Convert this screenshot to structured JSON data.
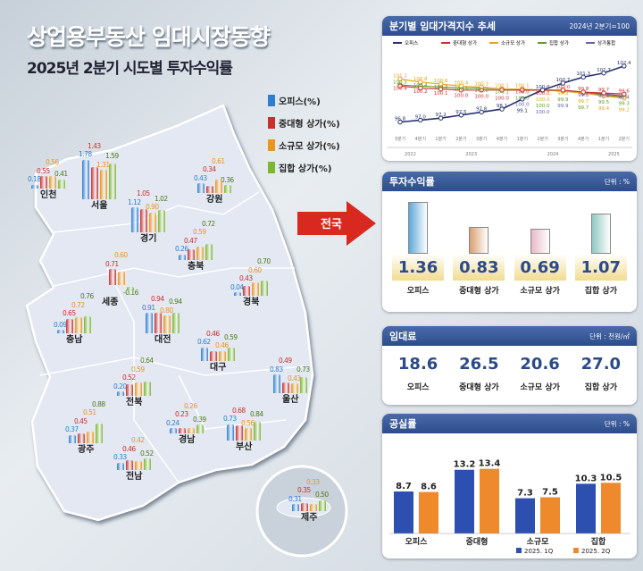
{
  "title": "상업용부동산 임대시장동향",
  "subtitle": "2025년 2분기 시도별 투자수익률",
  "legend": [
    {
      "label": "오피스(%)",
      "color": "#2f7fd0"
    },
    {
      "label": "중대형 상가(%)",
      "color": "#c9302c"
    },
    {
      "label": "소규모 상가(%)",
      "color": "#e8961e"
    },
    {
      "label": "집합 상가(%)",
      "color": "#7cb82f"
    }
  ],
  "nationwide_label": "전국",
  "regions": [
    {
      "name": "인천",
      "values": [
        0.18,
        0.55,
        0.56,
        0.41
      ]
    },
    {
      "name": "서울",
      "values": [
        1.78,
        1.43,
        1.31,
        1.59
      ]
    },
    {
      "name": "경기",
      "values": [
        1.12,
        1.05,
        0.9,
        1.02
      ]
    },
    {
      "name": "강원",
      "values": [
        0.43,
        0.34,
        0.61,
        0.36
      ]
    },
    {
      "name": "충북",
      "values": [
        0.26,
        0.47,
        0.59,
        0.72
      ]
    },
    {
      "name": "세종",
      "values": [
        null,
        0.71,
        0.6,
        -0.16
      ]
    },
    {
      "name": "경북",
      "values": [
        0.04,
        0.43,
        0.6,
        0.7
      ]
    },
    {
      "name": "충남",
      "values": [
        0.09,
        0.65,
        0.72,
        0.76
      ]
    },
    {
      "name": "대전",
      "values": [
        0.91,
        0.94,
        0.8,
        0.94
      ]
    },
    {
      "name": "대구",
      "values": [
        0.62,
        0.46,
        0.46,
        0.59
      ]
    },
    {
      "name": "울산",
      "values": [
        0.83,
        0.49,
        0.43,
        0.73
      ]
    },
    {
      "name": "전북",
      "values": [
        0.2,
        0.52,
        0.59,
        0.64
      ]
    },
    {
      "name": "광주",
      "values": [
        0.37,
        0.45,
        0.51,
        0.88
      ]
    },
    {
      "name": "경남",
      "values": [
        0.24,
        0.23,
        0.26,
        0.39
      ]
    },
    {
      "name": "부산",
      "values": [
        0.73,
        0.68,
        0.56,
        0.84
      ]
    },
    {
      "name": "전남",
      "values": [
        0.33,
        0.46,
        0.42,
        0.52
      ]
    },
    {
      "name": "제주",
      "values": [
        0.31,
        0.35,
        0.33,
        0.5
      ]
    }
  ],
  "index_panel": {
    "title": "분기별 임대가격지수 추세",
    "note": "2024년 2분기=100"
  },
  "returns_panel": {
    "title": "투자수익률",
    "unit": "단위 : %",
    "items": [
      {
        "label": "오피스",
        "value": "1.36"
      },
      {
        "label": "중대형 상가",
        "value": "0.83"
      },
      {
        "label": "소규모 상가",
        "value": "0.69"
      },
      {
        "label": "집합 상가",
        "value": "1.07"
      }
    ]
  },
  "rent_panel": {
    "title": "임대료",
    "unit": "단위 : 천원/㎡",
    "items": [
      {
        "label": "오피스",
        "value": "18.6"
      },
      {
        "label": "중대형 상가",
        "value": "26.5"
      },
      {
        "label": "소규모 상가",
        "value": "20.6"
      },
      {
        "label": "집합 상가",
        "value": "27.0"
      }
    ]
  },
  "vacancy_panel": {
    "title": "공실률",
    "unit": "단위 : %"
  },
  "chart_data": [
    {
      "type": "line",
      "title": "분기별 임대가격지수 추세",
      "categories": [
        "3분기",
        "4분기",
        "1분기",
        "2분기",
        "3분기",
        "4분기",
        "1분기",
        "2분기",
        "3분기",
        "4분기",
        "1분기",
        "2분기"
      ],
      "years": [
        "2022",
        "2023",
        "2024",
        "2025"
      ],
      "series": [
        {
          "name": "오피스",
          "color": "#27336e",
          "values": [
            96.8,
            97.0,
            97.2,
            97.5,
            97.8,
            98.1,
            99.1,
            100.0,
            100.7,
            101.3,
            101.7,
            102.4
          ]
        },
        {
          "name": "중대형 상가",
          "color": "#c9302c",
          "values": [
            100.4,
            100.2,
            100.1,
            100.0,
            100.0,
            100.0,
            100.0,
            100.0,
            100.0,
            99.8,
            99.7,
            99.6
          ]
        },
        {
          "name": "소규모 상가",
          "color": "#e3a51e",
          "values": [
            101.1,
            100.8,
            100.6,
            100.4,
            100.3,
            100.1,
            100.1,
            100.0,
            99.9,
            99.7,
            99.4,
            99.2
          ]
        },
        {
          "name": "집합 상가",
          "color": "#5f9a2a",
          "values": [
            100.5,
            100.4,
            100.3,
            100.2,
            100.2,
            100.1,
            100.0,
            100.0,
            99.9,
            99.7,
            99.5,
            99.3
          ]
        },
        {
          "name": "상가통합",
          "color": "#6b5ea8",
          "values": [
            null,
            null,
            null,
            null,
            null,
            null,
            100.0,
            100.0,
            99.9,
            99.8,
            99.6,
            99.4
          ]
        }
      ]
    },
    {
      "type": "bar",
      "title": "공실률",
      "categories": [
        "오피스",
        "중대형",
        "소규모",
        "집합"
      ],
      "series": [
        {
          "name": "2025. 1Q",
          "color": "#2c4fb0",
          "values": [
            8.7,
            13.2,
            7.3,
            10.3
          ]
        },
        {
          "name": "2025. 2Q",
          "color": "#ee8a2c",
          "values": [
            8.6,
            13.4,
            7.5,
            10.5
          ]
        }
      ]
    }
  ]
}
